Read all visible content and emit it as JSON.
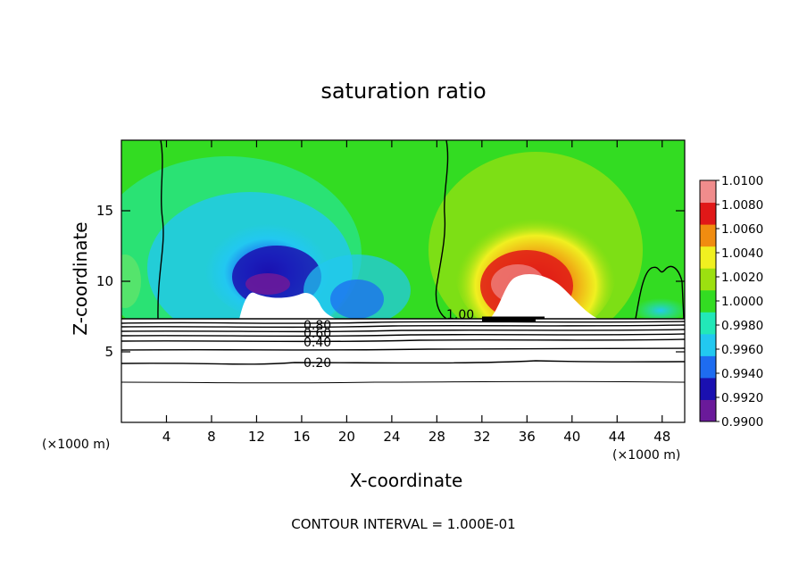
{
  "chart_data": {
    "type": "heatmap",
    "title": "saturation ratio",
    "xlabel": "X-coordinate",
    "ylabel": "Z-coordinate",
    "x_unit": "(×1000 m)",
    "z_unit": "(×1000 m)",
    "x_range": [
      0,
      50
    ],
    "z_range": [
      0,
      20
    ],
    "x_ticks": [
      4,
      8,
      12,
      16,
      20,
      24,
      28,
      32,
      36,
      40,
      44,
      48
    ],
    "z_ticks": [
      5,
      10,
      15
    ],
    "colorbar": {
      "levels": [
        0.99,
        0.992,
        0.994,
        0.996,
        0.998,
        1.0,
        1.002,
        1.004,
        1.006,
        1.008,
        1.01
      ],
      "labels": [
        "1.0100",
        "1.0080",
        "1.0060",
        "1.0040",
        "1.0020",
        "1.0000",
        "0.9980",
        "0.9960",
        "0.9940",
        "0.9920",
        "0.9900"
      ],
      "colors": [
        "#6a1a9a",
        "#1a10b0",
        "#1e6cf0",
        "#22c8f0",
        "#22e8b8",
        "#33dc22",
        "#9ce010",
        "#f0f020",
        "#f08c10",
        "#e01818",
        "#f08c8c"
      ]
    },
    "contour_labels": [
      "1.00",
      "0.80",
      "0.60",
      "0.40",
      "0.20"
    ],
    "footnote": "CONTOUR INTERVAL = 1.000E-01"
  }
}
